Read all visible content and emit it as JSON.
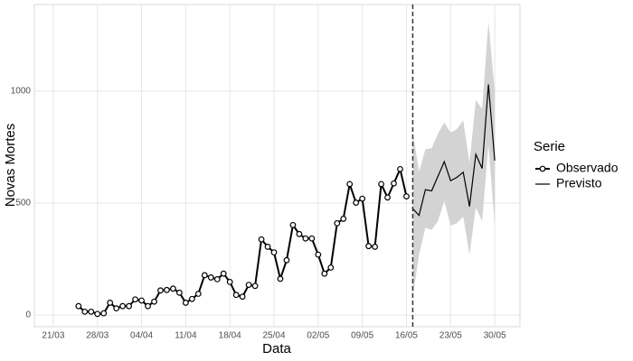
{
  "chart_data": {
    "type": "line",
    "x_label": "Data",
    "y_label": "Novas Mortes",
    "legend_title": "Serie",
    "xlim": [
      "18/03",
      "03/06"
    ],
    "xticks": [
      "21/03",
      "28/03",
      "04/04",
      "11/04",
      "18/04",
      "25/04",
      "02/05",
      "09/05",
      "16/05",
      "23/05",
      "30/05"
    ],
    "ylim": [
      -52,
      1387
    ],
    "yticks": [
      0,
      500,
      1000
    ],
    "grid": true,
    "vline": "17/05",
    "series": [
      {
        "name": "Observado",
        "color": "#000000",
        "markers": true,
        "x": [
          "25/03",
          "26/03",
          "27/03",
          "28/03",
          "29/03",
          "30/03",
          "31/03",
          "01/04",
          "02/04",
          "03/04",
          "04/04",
          "05/04",
          "06/04",
          "07/04",
          "08/04",
          "09/04",
          "10/04",
          "11/04",
          "12/04",
          "13/04",
          "14/04",
          "15/04",
          "16/04",
          "17/04",
          "18/04",
          "19/04",
          "20/04",
          "21/04",
          "22/04",
          "23/04",
          "24/04",
          "25/04",
          "26/04",
          "27/04",
          "28/04",
          "29/04",
          "30/04",
          "01/05",
          "02/05",
          "03/05",
          "04/05",
          "05/05",
          "06/05",
          "07/05",
          "08/05",
          "09/05",
          "10/05",
          "11/05",
          "12/05",
          "13/05",
          "14/05",
          "15/05",
          "16/05"
        ],
        "values": [
          40,
          15,
          15,
          5,
          8,
          55,
          30,
          40,
          40,
          70,
          65,
          40,
          60,
          110,
          112,
          118,
          100,
          55,
          72,
          95,
          178,
          168,
          160,
          185,
          148,
          90,
          82,
          135,
          130,
          338,
          305,
          280,
          162,
          245,
          402,
          362,
          342,
          342,
          270,
          185,
          212,
          410,
          430,
          585,
          502,
          520,
          308,
          305,
          585,
          525,
          588,
          652,
          530
        ]
      },
      {
        "name": "Previsto",
        "color": "#000000",
        "band_color": "#d3d3d3",
        "x": [
          "17/05",
          "18/05",
          "19/05",
          "20/05",
          "21/05",
          "22/05",
          "23/05",
          "24/05",
          "25/05",
          "26/05",
          "27/05",
          "28/05",
          "29/05",
          "30/05"
        ],
        "values": [
          475,
          445,
          560,
          555,
          620,
          685,
          600,
          615,
          638,
          485,
          718,
          655,
          1030,
          690
        ],
        "lower": [
          80,
          270,
          390,
          380,
          420,
          510,
          400,
          410,
          440,
          270,
          480,
          420,
          760,
          400
        ],
        "upper": [
          820,
          640,
          740,
          745,
          810,
          860,
          815,
          830,
          870,
          680,
          960,
          920,
          1310,
          1000
        ]
      }
    ]
  }
}
